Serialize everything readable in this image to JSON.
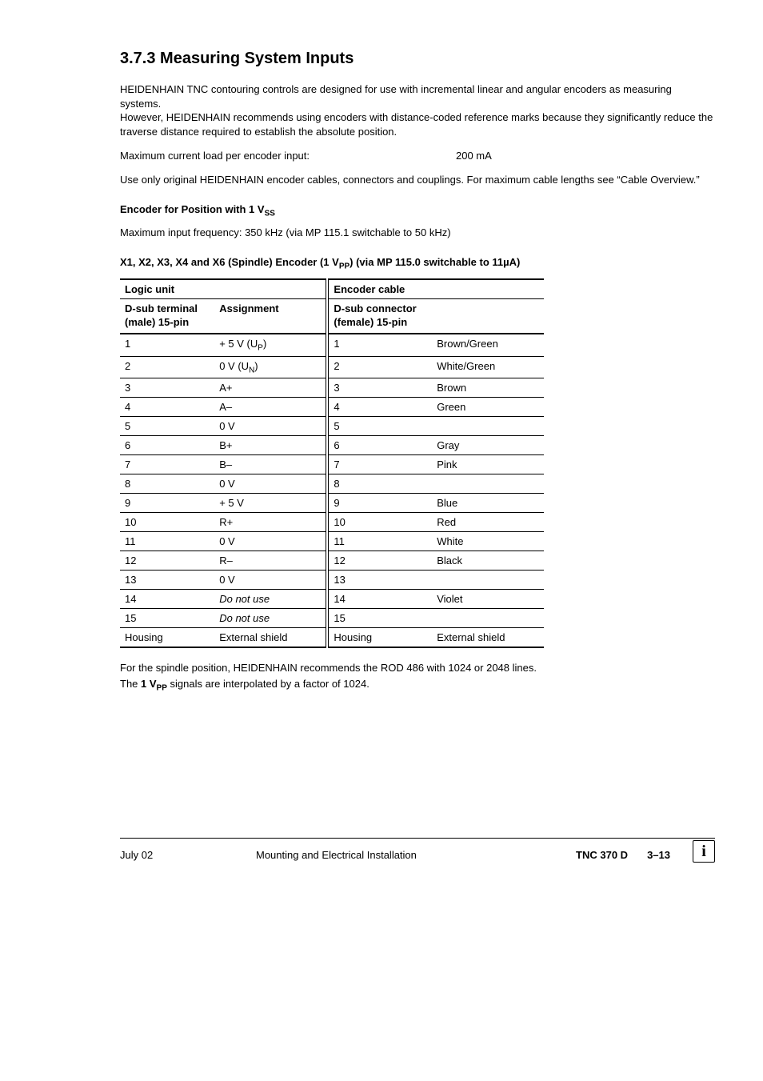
{
  "heading": "3.7.3  Measuring System Inputs",
  "intro_p1": "HEIDENHAIN TNC contouring controls are designed for use with incremental linear and angular encoders as measuring systems.",
  "intro_p2": "However, HEIDENHAIN recommends using encoders with distance-coded reference marks because they significantly reduce the traverse distance required to establish the absolute position.",
  "max_current_label": "Maximum current load per encoder input:",
  "max_current_value": "200 mA",
  "cables_note": "Use only original HEIDENHAIN encoder cables, connectors and couplings. For maximum cable lengths see “Cable Overview.”",
  "enc_pos_head_pre": "Encoder for Position with 1 V",
  "enc_pos_head_sub": "SS",
  "max_freq": "Maximum input frequency: 350 kHz (via MP 115.1 switchable to 50 kHz)",
  "conn_head_pre": "X1, X2, X3, X4 and X6 (Spindle) Encoder (1 V",
  "conn_head_sub": "PP",
  "conn_head_post": ") (via MP 115.0 switchable to 11µA)",
  "table": {
    "group_left": "Logic unit",
    "group_right": "Encoder cable",
    "col1": "D-sub terminal (male) 15-pin",
    "col2": "Assignment",
    "col3": "D-sub connector (female) 15-pin",
    "col4_blank": "",
    "rows": [
      {
        "c1": "1",
        "c2_pre": "+ 5 V (U",
        "c2_sub": "P",
        "c2_post": ")",
        "c3": "1",
        "c4": "Brown/Green"
      },
      {
        "c1": "2",
        "c2_pre": "0 V (U",
        "c2_sub": "N",
        "c2_post": ")",
        "c3": "2",
        "c4": "White/Green"
      },
      {
        "c1": "3",
        "c2": "A+",
        "c3": "3",
        "c4": "Brown"
      },
      {
        "c1": "4",
        "c2": "A–",
        "c3": "4",
        "c4": "Green"
      },
      {
        "c1": "5",
        "c2": "0 V",
        "c3": "5",
        "c4": ""
      },
      {
        "c1": "6",
        "c2": "B+",
        "c3": "6",
        "c4": "Gray"
      },
      {
        "c1": "7",
        "c2": "B–",
        "c3": "7",
        "c4": "Pink"
      },
      {
        "c1": "8",
        "c2": "0 V",
        "c3": "8",
        "c4": ""
      },
      {
        "c1": "9",
        "c2": "+ 5 V",
        "c3": "9",
        "c4": "Blue"
      },
      {
        "c1": "10",
        "c2": "R+",
        "c3": "10",
        "c4": "Red"
      },
      {
        "c1": "11",
        "c2": "0 V",
        "c3": "11",
        "c4": "White"
      },
      {
        "c1": "12",
        "c2": "R–",
        "c3": "12",
        "c4": "Black"
      },
      {
        "c1": "13",
        "c2": "0 V",
        "c3": "13",
        "c4": ""
      },
      {
        "c1": "14",
        "c2": "Do not use",
        "c2_italic": true,
        "c3": "14",
        "c4": "Violet"
      },
      {
        "c1": "15",
        "c2": "Do not use",
        "c2_italic": true,
        "c3": "15",
        "c4": ""
      },
      {
        "c1": "Housing",
        "c2": "External shield",
        "c3": "Housing",
        "c4": "External shield"
      }
    ]
  },
  "after_p1": "For the spindle position, HEIDENHAIN recommends the ROD 486 with 1024 or 2048 lines.",
  "after_p2_pre": "The ",
  "after_p2_bold_pre": "1 V",
  "after_p2_bold_sub": "PP",
  "after_p2_post": " signals are interpolated by a factor of 1024.",
  "footer": {
    "date": "July  02",
    "title": "Mounting and Electrical Installation",
    "doc": "TNC 370 D",
    "page": "3–13",
    "icon": "i"
  }
}
